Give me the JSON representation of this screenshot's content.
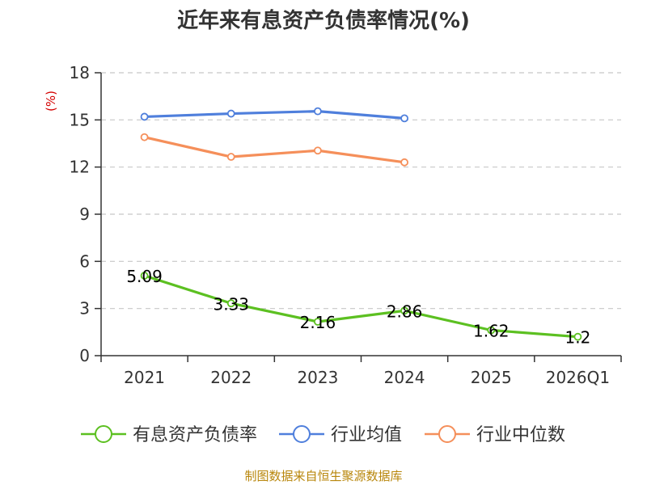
{
  "chart_data": {
    "type": "line",
    "title": "近年来有息资产负债率情况(%)",
    "unit": "(%)",
    "categories": [
      "2021",
      "2022",
      "2023",
      "2024",
      "2025",
      "2026Q1"
    ],
    "y_ticks": [
      "0",
      "3",
      "6",
      "9",
      "12",
      "15",
      "18"
    ],
    "ylim": [
      0,
      18
    ],
    "grid": true,
    "legend_position": "bottom",
    "series": [
      {
        "name": "有息资产负债率",
        "color": "#5cc021",
        "values": [
          5.09,
          3.33,
          2.16,
          2.86,
          1.62,
          1.2
        ],
        "labels": [
          "5.09",
          "3.33",
          "2.16",
          "2.86",
          "1.62",
          "1.2"
        ]
      },
      {
        "name": "行业均值",
        "color": "#4f7fdc",
        "values": [
          15.2,
          15.4,
          15.55,
          15.1,
          null,
          null
        ]
      },
      {
        "name": "行业中位数",
        "color": "#f58f5a",
        "values": [
          13.9,
          12.65,
          13.05,
          12.3,
          null,
          null
        ]
      }
    ]
  },
  "source": "制图数据来自恒生聚源数据库"
}
